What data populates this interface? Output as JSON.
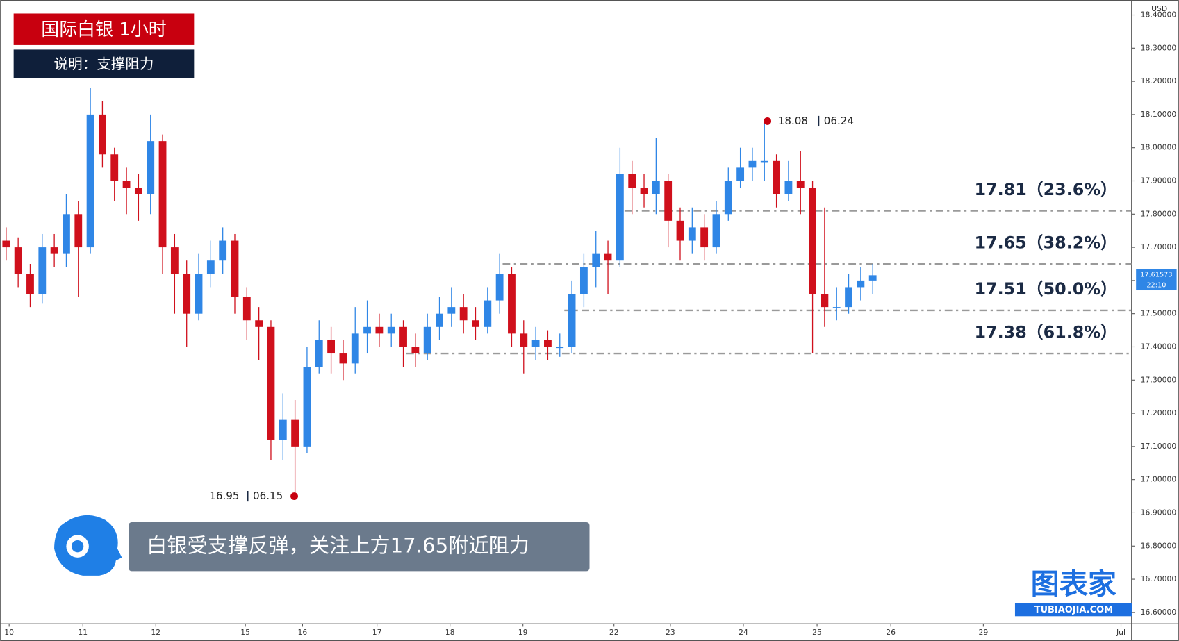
{
  "header": {
    "title": "国际白银 1小时",
    "subtitle": "说明：支撑阻力"
  },
  "comment": "白银受支撑反弹，关注上方17.65附近阻力",
  "logo": {
    "name": "图表家",
    "url": "TUBIAOJIA.COM"
  },
  "chart_data": {
    "type": "candlestick",
    "y_axis_label": "USD",
    "up_color": "#2f86e6",
    "down_color": "#d0101c",
    "xlim": [
      0,
      376
    ],
    "xticks": [
      {
        "value": 3,
        "label": "10"
      },
      {
        "value": 27.5,
        "label": "11"
      },
      {
        "value": 51.75,
        "label": "12"
      },
      {
        "value": 81.5,
        "label": "15"
      },
      {
        "value": 100.5,
        "label": "16"
      },
      {
        "value": 125.25,
        "label": "17"
      },
      {
        "value": 149.5,
        "label": "18"
      },
      {
        "value": 173.75,
        "label": "19"
      },
      {
        "value": 204,
        "label": "22"
      },
      {
        "value": 222.75,
        "label": "23"
      },
      {
        "value": 247,
        "label": "24"
      },
      {
        "value": 271.5,
        "label": "25"
      },
      {
        "value": 296,
        "label": "26"
      },
      {
        "value": 326.75,
        "label": "29"
      },
      {
        "value": 372.5,
        "label": "Jul"
      }
    ],
    "ylim": [
      16.566,
      18.445
    ],
    "yticks": [
      {
        "value": 16.6,
        "label": "16.60000"
      },
      {
        "value": 16.7,
        "label": "16.70000"
      },
      {
        "value": 16.8,
        "label": "16.80000"
      },
      {
        "value": 16.9,
        "label": "16.90000"
      },
      {
        "value": 17,
        "label": "17.00000"
      },
      {
        "value": 17.1,
        "label": "17.10000"
      },
      {
        "value": 17.2,
        "label": "17.20000"
      },
      {
        "value": 17.3,
        "label": "17.30000"
      },
      {
        "value": 17.4,
        "label": "17.40000"
      },
      {
        "value": 17.5,
        "label": "17.50000"
      },
      {
        "value": 17.6,
        "label": "17.60000"
      },
      {
        "value": 17.7,
        "label": "17.70000"
      },
      {
        "value": 17.8,
        "label": "17.80000"
      },
      {
        "value": 17.9,
        "label": "17.90000"
      },
      {
        "value": 18,
        "label": "18.00000"
      },
      {
        "value": 18.1,
        "label": "18.10000"
      },
      {
        "value": 18.2,
        "label": "18.20000"
      },
      {
        "value": 18.3,
        "label": "18.30000"
      },
      {
        "value": 18.4,
        "label": "18.40000"
      }
    ],
    "x": [
      2,
      6,
      10,
      14,
      18,
      22,
      26,
      30,
      34,
      38,
      42,
      46,
      50,
      54,
      58,
      62,
      66,
      70,
      74,
      78,
      82,
      86,
      90,
      94,
      98,
      102,
      106,
      110,
      114,
      118,
      122,
      126,
      130,
      134,
      138,
      142,
      146,
      150,
      154,
      158,
      162,
      166,
      170,
      174,
      178,
      182,
      186,
      190,
      194,
      198,
      202,
      206,
      210,
      214,
      218,
      222,
      226,
      230,
      234,
      238,
      242,
      246,
      250,
      254,
      258,
      262,
      266,
      270,
      274,
      278,
      282,
      286,
      290
    ],
    "open": [
      17.72,
      17.7,
      17.62,
      17.56,
      17.7,
      17.68,
      17.8,
      17.7,
      18.1,
      17.98,
      17.9,
      17.88,
      17.86,
      18.02,
      17.7,
      17.62,
      17.5,
      17.62,
      17.66,
      17.72,
      17.55,
      17.48,
      17.46,
      17.12,
      17.18,
      17.1,
      17.34,
      17.42,
      17.38,
      17.35,
      17.44,
      17.46,
      17.44,
      17.46,
      17.4,
      17.38,
      17.46,
      17.5,
      17.52,
      17.48,
      17.46,
      17.54,
      17.62,
      17.44,
      17.4,
      17.42,
      17.4,
      17.4,
      17.56,
      17.64,
      17.68,
      17.66,
      17.92,
      17.88,
      17.86,
      17.9,
      17.78,
      17.72,
      17.76,
      17.7,
      17.8,
      17.9,
      17.94,
      17.96,
      17.96,
      17.86,
      17.9,
      17.88,
      17.56,
      17.52,
      17.52,
      17.58,
      17.6
    ],
    "high": [
      17.76,
      17.73,
      17.65,
      17.74,
      17.74,
      17.86,
      17.84,
      18.18,
      18.14,
      18.0,
      17.94,
      17.92,
      18.1,
      18.04,
      17.74,
      17.66,
      17.68,
      17.72,
      17.76,
      17.74,
      17.58,
      17.52,
      17.48,
      17.26,
      17.24,
      17.4,
      17.48,
      17.46,
      17.42,
      17.52,
      17.54,
      17.5,
      17.5,
      17.48,
      17.44,
      17.5,
      17.55,
      17.58,
      17.56,
      17.52,
      17.58,
      17.68,
      17.64,
      17.48,
      17.46,
      17.45,
      17.44,
      17.6,
      17.68,
      17.75,
      17.72,
      18.0,
      17.96,
      17.92,
      18.03,
      17.92,
      17.82,
      17.82,
      17.8,
      17.84,
      17.94,
      18.0,
      18.0,
      18.08,
      17.98,
      17.96,
      17.99,
      17.9,
      17.82,
      17.58,
      17.62,
      17.64,
      17.65
    ],
    "low": [
      17.66,
      17.58,
      17.52,
      17.53,
      17.64,
      17.64,
      17.55,
      17.68,
      17.94,
      17.84,
      17.8,
      17.78,
      17.8,
      17.62,
      17.5,
      17.4,
      17.48,
      17.58,
      17.62,
      17.5,
      17.42,
      17.36,
      17.06,
      17.06,
      16.95,
      17.08,
      17.32,
      17.32,
      17.3,
      17.32,
      17.38,
      17.4,
      17.4,
      17.34,
      17.34,
      17.36,
      17.42,
      17.46,
      17.44,
      17.42,
      17.44,
      17.5,
      17.4,
      17.32,
      17.36,
      17.36,
      17.37,
      17.38,
      17.52,
      17.58,
      17.56,
      17.64,
      17.8,
      17.82,
      17.8,
      17.7,
      17.66,
      17.68,
      17.66,
      17.68,
      17.78,
      17.88,
      17.9,
      17.9,
      17.82,
      17.84,
      17.8,
      17.38,
      17.46,
      17.48,
      17.5,
      17.54,
      17.56
    ],
    "close": [
      17.7,
      17.62,
      17.56,
      17.7,
      17.68,
      17.8,
      17.7,
      18.1,
      17.98,
      17.9,
      17.88,
      17.86,
      18.02,
      17.7,
      17.62,
      17.5,
      17.62,
      17.66,
      17.72,
      17.55,
      17.48,
      17.46,
      17.12,
      17.18,
      17.1,
      17.34,
      17.42,
      17.38,
      17.35,
      17.44,
      17.46,
      17.44,
      17.46,
      17.4,
      17.38,
      17.46,
      17.5,
      17.52,
      17.48,
      17.46,
      17.54,
      17.62,
      17.44,
      17.4,
      17.42,
      17.4,
      17.4,
      17.56,
      17.64,
      17.68,
      17.66,
      17.92,
      17.88,
      17.86,
      17.9,
      17.78,
      17.72,
      17.76,
      17.7,
      17.8,
      17.9,
      17.94,
      17.96,
      17.96,
      17.86,
      17.9,
      17.88,
      17.56,
      17.52,
      17.52,
      17.58,
      17.6,
      17.61573
    ],
    "levels": [
      {
        "value": 17.81,
        "label": "17.81（23.6%）",
        "from": 207.5
      },
      {
        "value": 17.65,
        "label": "17.65（38.2%）",
        "from": 167
      },
      {
        "value": 17.51,
        "label": "17.51（50.0%）",
        "from": 187.5
      },
      {
        "value": 17.38,
        "label": "17.38（61.8%）",
        "from": 135
      }
    ],
    "extremes": [
      {
        "x": 255,
        "value": 18.08,
        "label": "18.08",
        "date": "06.24",
        "side": "right"
      },
      {
        "x": 97.75,
        "value": 16.95,
        "label": "16.95",
        "date": "06.15",
        "side": "left"
      }
    ],
    "last_price": {
      "value": 17.61573,
      "label": "17.61573",
      "time": "22:10"
    }
  }
}
